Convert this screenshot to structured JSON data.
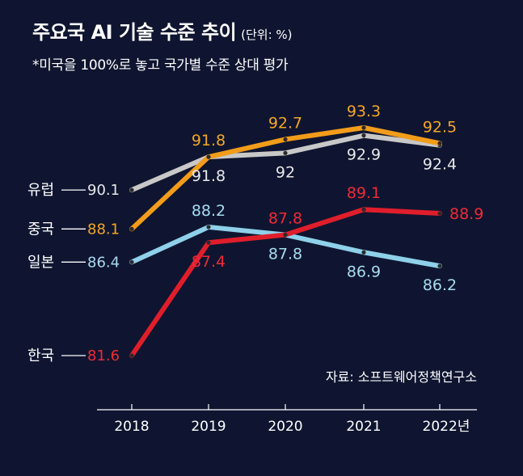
{
  "title": "주요국 AI 기술 수준 추이",
  "unit": "(단위: %)",
  "subtitle": "*미국을 100%로 놓고 국가별 수준 상대 평가",
  "source": "자료: 소프트웨어정책연구소",
  "chart_data": {
    "type": "line",
    "categories": [
      "2018",
      "2019",
      "2020",
      "2021",
      "2022년"
    ],
    "ylim": [
      80,
      94
    ],
    "grid": false,
    "legend": "inline-left",
    "series": [
      {
        "name": "유럽",
        "values": [
          90.1,
          91.8,
          92,
          92.9,
          92.4
        ],
        "color": "#c8c8c8",
        "labels": [
          "90.1",
          "91.8",
          "92",
          "92.9",
          "92.4"
        ],
        "label_color": "#e8e8e8",
        "label_pos": [
          "left",
          "below",
          "below",
          "below",
          "below"
        ]
      },
      {
        "name": "중국",
        "values": [
          88.1,
          91.8,
          92.7,
          93.3,
          92.5
        ],
        "color": "#f29c1a",
        "labels": [
          "88.1",
          "91.8",
          "92.7",
          "93.3",
          "92.5"
        ],
        "label_color": "#f5a623",
        "label_pos": [
          "left",
          "above",
          "above",
          "above",
          "above"
        ]
      },
      {
        "name": "일본",
        "values": [
          86.4,
          88.2,
          87.8,
          86.9,
          86.2
        ],
        "color": "#8fd0ea",
        "labels": [
          "86.4",
          "88.2",
          "87.8",
          "86.9",
          "86.2"
        ],
        "label_color": "#a7dcf0",
        "label_pos": [
          "left",
          "above",
          "below",
          "below",
          "below"
        ]
      },
      {
        "name": "한국",
        "values": [
          81.6,
          87.4,
          87.8,
          89.1,
          88.9
        ],
        "color": "#e01e2b",
        "labels": [
          "81.6",
          "87.4",
          "87.8",
          "89.1",
          "88.9"
        ],
        "label_color": "#ee2a36",
        "label_pos": [
          "left",
          "below",
          "above",
          "above",
          "right"
        ]
      }
    ]
  }
}
